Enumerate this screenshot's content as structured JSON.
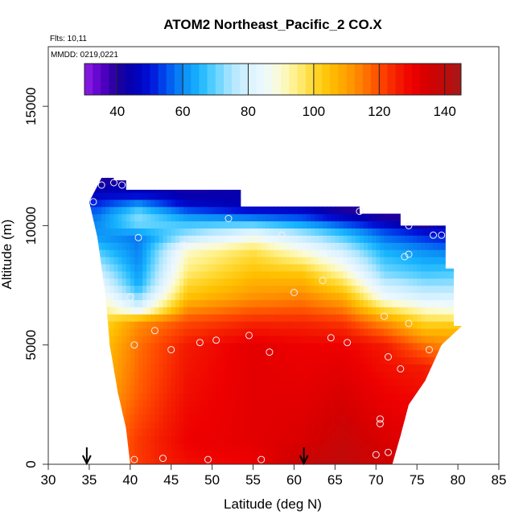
{
  "chart_data": {
    "type": "heatmap",
    "title": "ATOM2 Northeast_Pacific_2 CO.X",
    "annotations": {
      "flights": "Flts: 10,11",
      "dates": "MMDD: 0219,0221"
    },
    "xlabel": "Latitude (deg N)",
    "ylabel": "Altitude (m)",
    "xlim": [
      30,
      85
    ],
    "ylim": [
      0,
      17500
    ],
    "x_ticks": [
      30,
      35,
      40,
      45,
      50,
      55,
      60,
      65,
      70,
      75,
      80,
      85
    ],
    "y_ticks": [
      0,
      5000,
      10000,
      15000
    ],
    "colorbar": {
      "range": [
        30,
        145
      ],
      "ticks": [
        40,
        60,
        80,
        100,
        120,
        140
      ],
      "stops": [
        [
          30,
          "#8f1fe8"
        ],
        [
          35,
          "#5a00c8"
        ],
        [
          40,
          "#20009a"
        ],
        [
          45,
          "#0000b4"
        ],
        [
          50,
          "#0010d8"
        ],
        [
          55,
          "#0050f0"
        ],
        [
          60,
          "#0b8cf5"
        ],
        [
          65,
          "#18b4ff"
        ],
        [
          70,
          "#60d2ff"
        ],
        [
          75,
          "#b0e6ff"
        ],
        [
          80,
          "#d8f2ff"
        ],
        [
          85,
          "#eef8ff"
        ],
        [
          90,
          "#fbfbd0"
        ],
        [
          95,
          "#ffef80"
        ],
        [
          100,
          "#ffd830"
        ],
        [
          105,
          "#ffc000"
        ],
        [
          110,
          "#ffa000"
        ],
        [
          115,
          "#ff7a00"
        ],
        [
          120,
          "#ff4a00"
        ],
        [
          125,
          "#f52000"
        ],
        [
          130,
          "#ee0000"
        ],
        [
          135,
          "#d40000"
        ],
        [
          140,
          "#be0a0a"
        ],
        [
          145,
          "#a51818"
        ]
      ]
    },
    "profile_top": [
      {
        "lat": 36.5,
        "alt": 12000
      },
      {
        "lat": 38,
        "alt": 12000
      },
      {
        "lat": 38,
        "alt": 11900
      },
      {
        "lat": 39.5,
        "alt": 11900
      },
      {
        "lat": 39.5,
        "alt": 11500
      },
      {
        "lat": 53.5,
        "alt": 11500
      },
      {
        "lat": 53.5,
        "alt": 10800
      },
      {
        "lat": 68,
        "alt": 10800
      },
      {
        "lat": 68,
        "alt": 10500
      },
      {
        "lat": 73,
        "alt": 10500
      },
      {
        "lat": 73,
        "alt": 10000
      },
      {
        "lat": 78.5,
        "alt": 10000
      },
      {
        "lat": 78.5,
        "alt": 8200
      },
      {
        "lat": 79.5,
        "alt": 8200
      },
      {
        "lat": 79.5,
        "alt": 5800
      },
      {
        "lat": 80.5,
        "alt": 5800
      }
    ],
    "profile_bottom": [
      {
        "lat": 35,
        "alt": 11000
      },
      {
        "lat": 36,
        "alt": 9500
      },
      {
        "lat": 37,
        "alt": 7000
      },
      {
        "lat": 37.5,
        "alt": 5000
      },
      {
        "lat": 38.5,
        "alt": 3000
      },
      {
        "lat": 39.5,
        "alt": 1500
      },
      {
        "lat": 40,
        "alt": 0
      },
      {
        "lat": 72,
        "alt": 0
      },
      {
        "lat": 73,
        "alt": 1200
      },
      {
        "lat": 74,
        "alt": 2500
      },
      {
        "lat": 76,
        "alt": 3500
      },
      {
        "lat": 78,
        "alt": 5000
      },
      {
        "lat": 80.5,
        "alt": 5800
      }
    ],
    "field_profiles": [
      {
        "lat": 36,
        "levels": [
          [
            0,
            112
          ],
          [
            1000,
            112
          ],
          [
            3000,
            106
          ],
          [
            5000,
            102
          ],
          [
            6500,
            96
          ],
          [
            7500,
            86
          ],
          [
            8500,
            74
          ],
          [
            9500,
            62
          ],
          [
            10500,
            58
          ],
          [
            11200,
            48
          ],
          [
            12000,
            40
          ]
        ]
      },
      {
        "lat": 41,
        "levels": [
          [
            0,
            122
          ],
          [
            1000,
            122
          ],
          [
            3000,
            118
          ],
          [
            5000,
            116
          ],
          [
            6000,
            112
          ],
          [
            6500,
            82
          ],
          [
            7500,
            64
          ],
          [
            8500,
            60
          ],
          [
            9500,
            58
          ],
          [
            10200,
            74
          ],
          [
            10700,
            68
          ],
          [
            11300,
            48
          ],
          [
            12000,
            40
          ]
        ]
      },
      {
        "lat": 47,
        "levels": [
          [
            0,
            128
          ],
          [
            1000,
            130
          ],
          [
            3000,
            128
          ],
          [
            5000,
            126
          ],
          [
            6000,
            120
          ],
          [
            7000,
            105
          ],
          [
            8000,
            96
          ],
          [
            9000,
            90
          ],
          [
            9600,
            74
          ],
          [
            10200,
            66
          ],
          [
            11000,
            46
          ],
          [
            11500,
            42
          ]
        ]
      },
      {
        "lat": 55,
        "levels": [
          [
            0,
            130
          ],
          [
            1000,
            132
          ],
          [
            3000,
            132
          ],
          [
            5000,
            132
          ],
          [
            6000,
            124
          ],
          [
            7000,
            112
          ],
          [
            8000,
            105
          ],
          [
            9000,
            98
          ],
          [
            9800,
            80
          ],
          [
            10300,
            60
          ],
          [
            10800,
            44
          ]
        ]
      },
      {
        "lat": 61,
        "levels": [
          [
            0,
            138
          ],
          [
            1000,
            134
          ],
          [
            3000,
            132
          ],
          [
            5000,
            130
          ],
          [
            6000,
            124
          ],
          [
            7000,
            114
          ],
          [
            8000,
            104
          ],
          [
            9000,
            88
          ],
          [
            9800,
            72
          ],
          [
            10300,
            56
          ],
          [
            10800,
            44
          ]
        ]
      },
      {
        "lat": 66,
        "levels": [
          [
            0,
            140
          ],
          [
            1000,
            138
          ],
          [
            3000,
            134
          ],
          [
            5000,
            130
          ],
          [
            6000,
            122
          ],
          [
            7000,
            108
          ],
          [
            8000,
            92
          ],
          [
            9000,
            78
          ],
          [
            9800,
            64
          ],
          [
            10300,
            48
          ],
          [
            10700,
            40
          ]
        ]
      },
      {
        "lat": 71,
        "levels": [
          [
            0,
            136
          ],
          [
            1000,
            134
          ],
          [
            3000,
            130
          ],
          [
            5000,
            126
          ],
          [
            6000,
            112
          ],
          [
            7000,
            86
          ],
          [
            8000,
            72
          ],
          [
            9000,
            64
          ],
          [
            9800,
            54
          ],
          [
            10300,
            42
          ],
          [
            10500,
            38
          ]
        ]
      },
      {
        "lat": 76,
        "levels": [
          [
            0,
            132
          ],
          [
            2000,
            130
          ],
          [
            3000,
            128
          ],
          [
            4000,
            126
          ],
          [
            5000,
            116
          ],
          [
            6000,
            100
          ],
          [
            7000,
            80
          ],
          [
            8000,
            68
          ],
          [
            9000,
            60
          ],
          [
            9800,
            48
          ],
          [
            10000,
            40
          ]
        ]
      },
      {
        "lat": 80,
        "levels": [
          [
            0,
            130
          ],
          [
            3000,
            126
          ],
          [
            5000,
            112
          ],
          [
            5800,
            104
          ],
          [
            6500,
            88
          ],
          [
            7500,
            74
          ],
          [
            8500,
            64
          ],
          [
            9500,
            50
          ]
        ]
      }
    ],
    "obs_points": [
      {
        "lat": 35.5,
        "alt": 11000
      },
      {
        "lat": 36.5,
        "alt": 11700
      },
      {
        "lat": 38,
        "alt": 11800
      },
      {
        "lat": 39,
        "alt": 11700
      },
      {
        "lat": 41,
        "alt": 9500
      },
      {
        "lat": 46.5,
        "alt": 9200
      },
      {
        "lat": 52,
        "alt": 10300
      },
      {
        "lat": 58.5,
        "alt": 9600
      },
      {
        "lat": 68,
        "alt": 10600
      },
      {
        "lat": 74,
        "alt": 10000
      },
      {
        "lat": 77,
        "alt": 9600
      },
      {
        "lat": 78,
        "alt": 9600
      },
      {
        "lat": 73.5,
        "alt": 8700
      },
      {
        "lat": 74,
        "alt": 8800
      },
      {
        "lat": 40,
        "alt": 7000
      },
      {
        "lat": 60,
        "alt": 7200
      },
      {
        "lat": 63.5,
        "alt": 7700
      },
      {
        "lat": 70,
        "alt": 7300
      },
      {
        "lat": 71,
        "alt": 6200
      },
      {
        "lat": 74,
        "alt": 5900
      },
      {
        "lat": 43,
        "alt": 5600
      },
      {
        "lat": 54.5,
        "alt": 5400
      },
      {
        "lat": 40.5,
        "alt": 5000
      },
      {
        "lat": 45,
        "alt": 4800
      },
      {
        "lat": 48.5,
        "alt": 5100
      },
      {
        "lat": 50.5,
        "alt": 5200
      },
      {
        "lat": 57,
        "alt": 4700
      },
      {
        "lat": 64.5,
        "alt": 5300
      },
      {
        "lat": 66.5,
        "alt": 5100
      },
      {
        "lat": 71.5,
        "alt": 4500
      },
      {
        "lat": 73,
        "alt": 4000
      },
      {
        "lat": 76.5,
        "alt": 4800
      },
      {
        "lat": 70.5,
        "alt": 1900
      },
      {
        "lat": 70.5,
        "alt": 1700
      },
      {
        "lat": 40.5,
        "alt": 200
      },
      {
        "lat": 44,
        "alt": 250
      },
      {
        "lat": 49.5,
        "alt": 200
      },
      {
        "lat": 56,
        "alt": 200
      },
      {
        "lat": 70,
        "alt": 400
      },
      {
        "lat": 71.5,
        "alt": 500
      }
    ],
    "markers": [
      {
        "type": "down-arrow",
        "lat": 34.7
      },
      {
        "type": "down-arrow",
        "lat": 61.2
      }
    ]
  }
}
